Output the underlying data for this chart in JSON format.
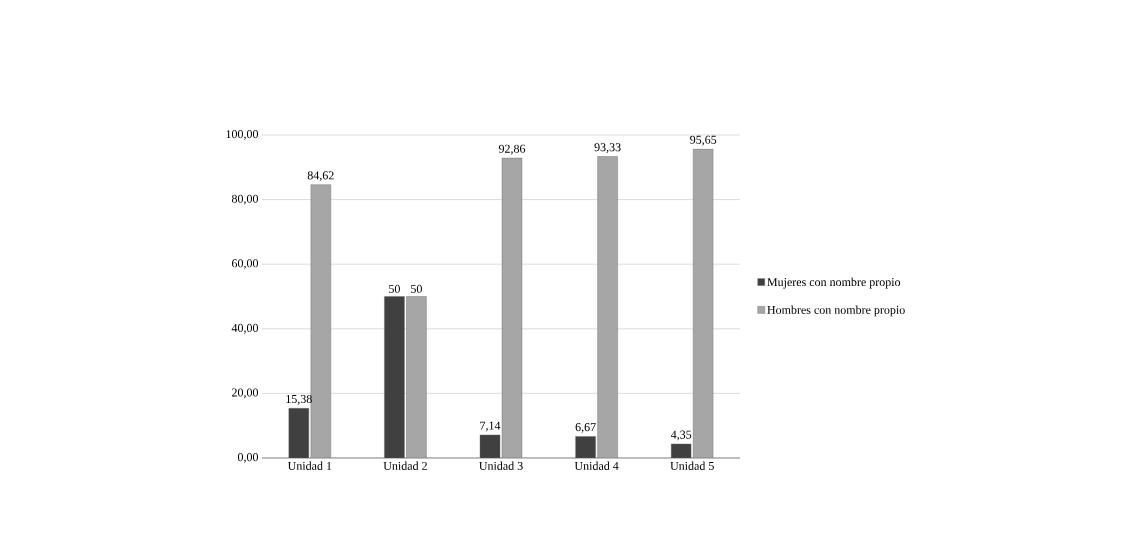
{
  "chart_data": {
    "type": "bar",
    "categories": [
      "Unidad 1",
      "Unidad 2",
      "Unidad 3",
      "Unidad 4",
      "Unidad 5"
    ],
    "series": [
      {
        "name": "Mujeres con nombre propio",
        "color": "#404040",
        "values": [
          15.38,
          50,
          7.14,
          6.67,
          4.35
        ],
        "value_labels": [
          "15,38",
          "50",
          "7,14",
          "6,67",
          "4,35"
        ]
      },
      {
        "name": "Hombres con nombre propio",
        "color": "#a6a6a6",
        "values": [
          84.62,
          50,
          92.86,
          93.33,
          95.65
        ],
        "value_labels": [
          "84,62",
          "50",
          "92,86",
          "93,33",
          "95,65"
        ]
      }
    ],
    "ylim": [
      0,
      100
    ],
    "yticks": [
      {
        "value": 0,
        "label": "0,00"
      },
      {
        "value": 20,
        "label": "20,00"
      },
      {
        "value": 40,
        "label": "40,00"
      },
      {
        "value": 60,
        "label": "60,00"
      },
      {
        "value": 80,
        "label": "80,00"
      },
      {
        "value": 100,
        "label": "100,00"
      }
    ],
    "grid": "y",
    "legend": "right"
  }
}
